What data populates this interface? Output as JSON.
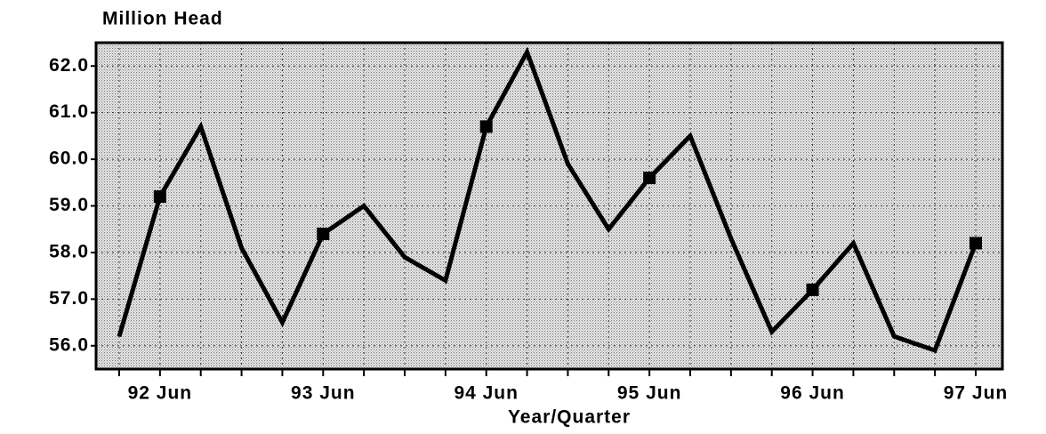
{
  "chart_data": {
    "type": "line",
    "title": "Million Head",
    "x_label": "Year/Quarter",
    "categories": [
      null,
      "92 Jun",
      null,
      null,
      null,
      "93 Jun",
      null,
      null,
      null,
      "94 Jun",
      null,
      null,
      null,
      "95 Jun",
      null,
      null,
      null,
      "96 Jun",
      null,
      null,
      null,
      "97 Jun"
    ],
    "values": [
      56.2,
      59.2,
      60.7,
      58.1,
      56.5,
      58.4,
      59.0,
      57.9,
      57.4,
      60.7,
      62.3,
      59.9,
      58.5,
      59.6,
      60.5,
      58.3,
      56.3,
      57.2,
      58.2,
      56.2,
      55.9,
      58.2
    ],
    "color": "#000000",
    "ylim": [
      55.5,
      62.5
    ],
    "yticks": [
      {
        "value": 56,
        "label": "56.0"
      },
      {
        "value": 57,
        "label": "57.0"
      },
      {
        "value": 58,
        "label": "58.0"
      },
      {
        "value": 59,
        "label": "59.0"
      },
      {
        "value": 60,
        "label": "60.0"
      },
      {
        "value": 61,
        "label": "61.0"
      },
      {
        "value": 62,
        "label": "62.0"
      }
    ],
    "grid": true
  }
}
